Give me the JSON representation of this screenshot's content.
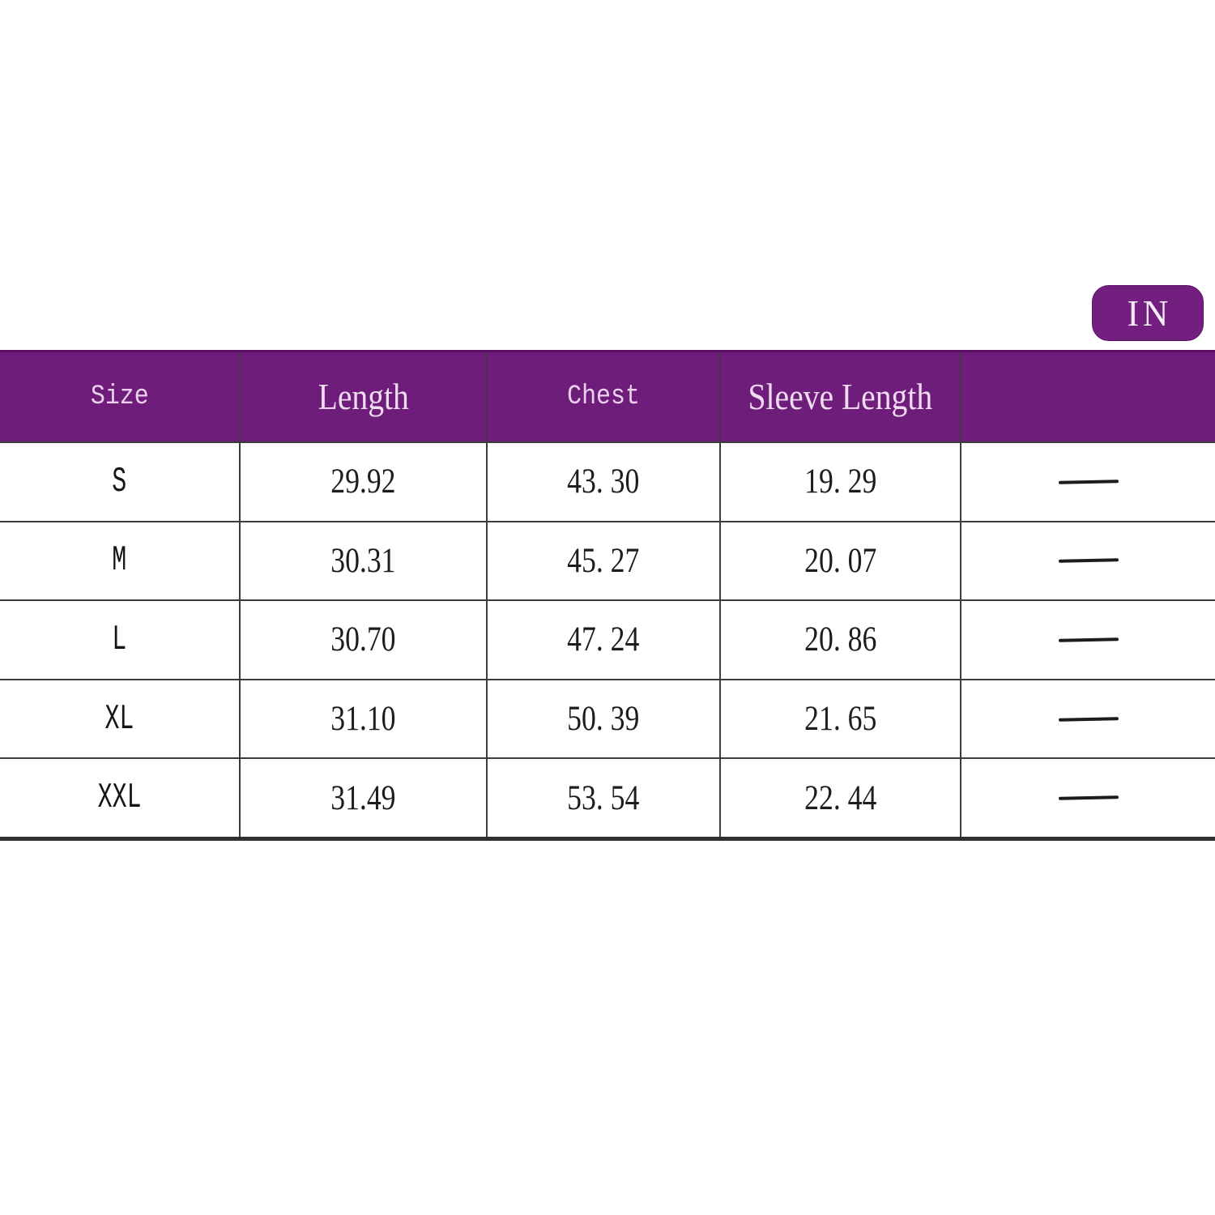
{
  "unit_badge": {
    "label": "IN"
  },
  "colors": {
    "header_background": "#6f1d7a",
    "header_top_edge": "#5a1163",
    "badge_background": "#731f80",
    "header_text": "#eed5ef",
    "body_text": "#1d1d1d",
    "grid_line": "#3c3c3c",
    "bottom_rule": "#303030",
    "page_background": "#ffffff"
  },
  "chart_data": {
    "type": "table",
    "unit": "IN",
    "columns": [
      "Size",
      "Length",
      "Chest",
      "Sleeve Length",
      ""
    ],
    "rows": [
      [
        "S",
        "29.92",
        "43. 30",
        "19. 29",
        "—"
      ],
      [
        "M",
        "30.31",
        "45. 27",
        "20. 07",
        "—"
      ],
      [
        "L",
        "30.70",
        "47. 24",
        "20. 86",
        "—"
      ],
      [
        "XL",
        "31.10",
        "50. 39",
        "21. 65",
        "—"
      ],
      [
        "XXL",
        "31.49",
        "53. 54",
        "22. 44",
        "—"
      ]
    ]
  }
}
